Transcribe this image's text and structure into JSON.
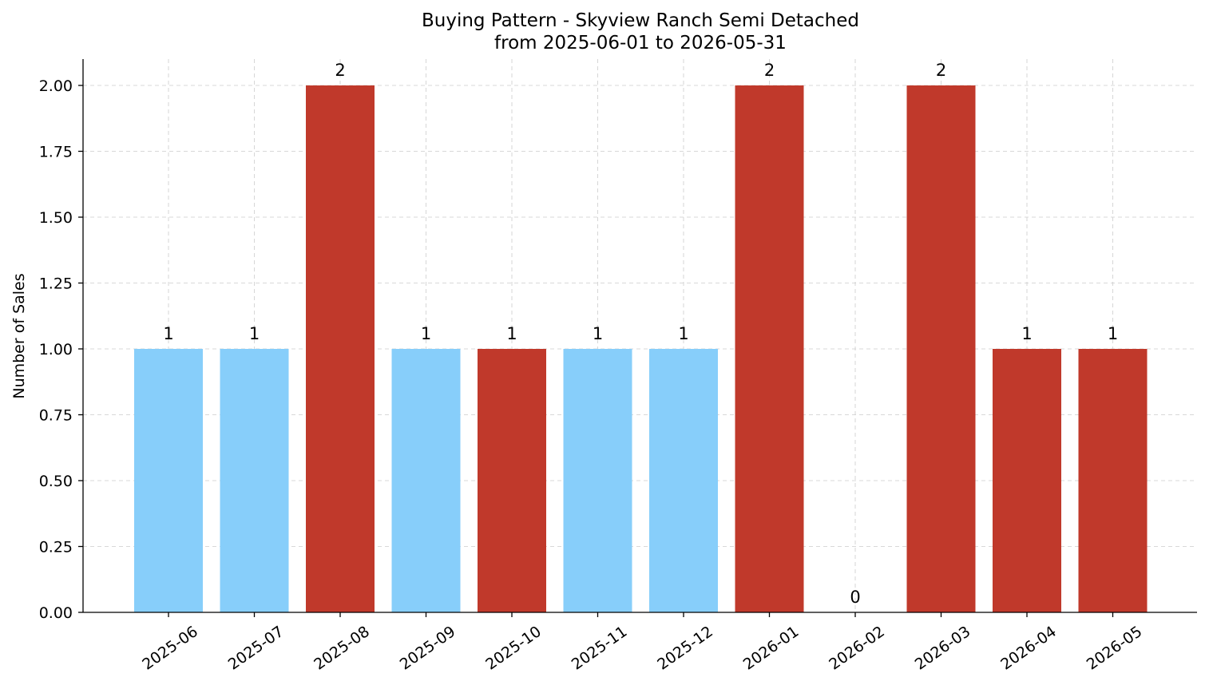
{
  "chart_data": {
    "type": "bar",
    "title": "Buying Pattern - Skyview Ranch Semi Detached",
    "subtitle": "from 2025-06-01 to 2026-05-31",
    "xlabel": "",
    "ylabel": "Number of Sales",
    "categories": [
      "2025-06",
      "2025-07",
      "2025-08",
      "2025-09",
      "2025-10",
      "2025-11",
      "2025-12",
      "2026-01",
      "2026-02",
      "2026-03",
      "2026-04",
      "2026-05"
    ],
    "values": [
      1,
      1,
      2,
      1,
      1,
      1,
      1,
      2,
      0,
      2,
      1,
      1
    ],
    "data_labels": [
      "1",
      "1",
      "2",
      "1",
      "1",
      "1",
      "1",
      "2",
      "0",
      "2",
      "1",
      "1"
    ],
    "bar_colors": [
      "#87CEFA",
      "#87CEFA",
      "#C0392B",
      "#87CEFA",
      "#C0392B",
      "#87CEFA",
      "#87CEFA",
      "#C0392B",
      "#C0392B",
      "#C0392B",
      "#C0392B",
      "#C0392B"
    ],
    "ylim": [
      0,
      2.1
    ],
    "yticks": [
      0,
      0.25,
      0.5,
      0.75,
      1.0,
      1.25,
      1.5,
      1.75,
      2.0
    ],
    "ytick_labels": [
      "0.00",
      "0.25",
      "0.50",
      "0.75",
      "1.00",
      "1.25",
      "1.50",
      "1.75",
      "2.00"
    ],
    "grid": true,
    "legend": "none"
  }
}
